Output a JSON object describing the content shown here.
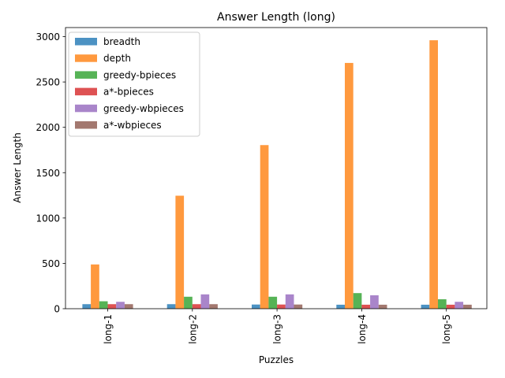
{
  "chart_data": {
    "type": "bar",
    "title": "Answer Length (long)",
    "xlabel": "Puzzles",
    "ylabel": "Answer Length",
    "categories": [
      "long-1",
      "long-2",
      "long-3",
      "long-4",
      "long-5"
    ],
    "ylim": [
      0,
      3100
    ],
    "yticks": [
      0,
      500,
      1000,
      1500,
      2000,
      2500,
      3000
    ],
    "legend_position": "upper-left",
    "series": [
      {
        "name": "breadth",
        "color": "#1f77b4",
        "values": [
          50,
          50,
          46,
          44,
          44
        ]
      },
      {
        "name": "depth",
        "color": "#ff7f0e",
        "values": [
          488,
          1246,
          1804,
          2710,
          2960
        ]
      },
      {
        "name": "greedy-bpieces",
        "color": "#2ca02c",
        "values": [
          82,
          132,
          132,
          172,
          104
        ]
      },
      {
        "name": "a*-bpieces",
        "color": "#d62728",
        "values": [
          50,
          50,
          46,
          44,
          44
        ]
      },
      {
        "name": "greedy-wbpieces",
        "color": "#9467bd",
        "values": [
          76,
          158,
          158,
          148,
          76
        ]
      },
      {
        "name": "a*-wbpieces",
        "color": "#8c564b",
        "values": [
          50,
          50,
          46,
          44,
          44
        ]
      }
    ]
  }
}
